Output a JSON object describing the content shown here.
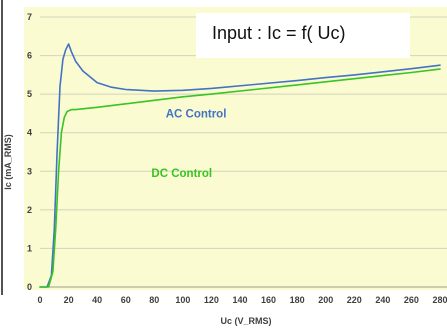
{
  "chart_data": {
    "type": "line",
    "title": "Input : Ic = f( Uc)",
    "xlabel": "Uc (V_RMS)",
    "ylabel": "Ic (mA_RMS)",
    "xlim": [
      0,
      280
    ],
    "ylim": [
      0,
      7
    ],
    "x_ticks": [
      0,
      20,
      40,
      60,
      80,
      100,
      120,
      140,
      160,
      180,
      200,
      220,
      240,
      260,
      280
    ],
    "y_ticks": [
      0,
      1,
      2,
      3,
      4,
      5,
      6,
      7
    ],
    "grid": "horizontal",
    "series": [
      {
        "name": "AC Control",
        "color": "#4472c4",
        "x": [
          0,
          5,
          8,
          10,
          12,
          14,
          16,
          18,
          20,
          22,
          25,
          30,
          40,
          50,
          60,
          80,
          100,
          120,
          150,
          180,
          200,
          220,
          240,
          260,
          280
        ],
        "y": [
          0,
          0,
          0.3,
          1.5,
          3.5,
          5.2,
          5.9,
          6.15,
          6.3,
          6.1,
          5.85,
          5.6,
          5.3,
          5.18,
          5.12,
          5.08,
          5.1,
          5.15,
          5.25,
          5.35,
          5.43,
          5.5,
          5.58,
          5.66,
          5.75
        ]
      },
      {
        "name": "DC Control",
        "color": "#39c425",
        "x": [
          0,
          6,
          9,
          11,
          13,
          15,
          17,
          19,
          22,
          25,
          30,
          40,
          60,
          80,
          100,
          120,
          150,
          180,
          200,
          220,
          240,
          260,
          280
        ],
        "y": [
          0,
          0,
          0.4,
          1.5,
          3.0,
          4.0,
          4.4,
          4.55,
          4.6,
          4.6,
          4.62,
          4.66,
          4.75,
          4.84,
          4.93,
          5.0,
          5.12,
          5.24,
          5.32,
          5.4,
          5.48,
          5.56,
          5.65
        ]
      }
    ]
  }
}
